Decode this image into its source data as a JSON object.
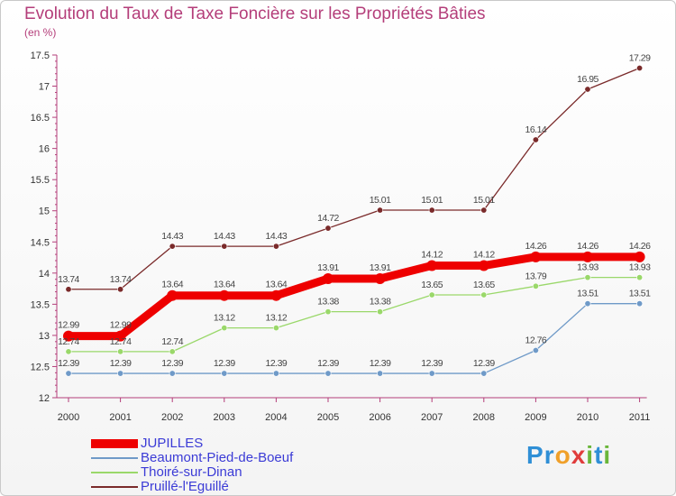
{
  "title": "Evolution du Taux de Taxe Foncière sur les Propriétés Bâties",
  "unit_label": "(en %)",
  "logo": {
    "text": "Proxiti",
    "letters": [
      "P",
      "r",
      "o",
      "x",
      "i",
      "t",
      "i"
    ],
    "colors": [
      "#2f8fd6",
      "#2f8fd6",
      "#f0a02a",
      "#e03c3c",
      "#6ab63a",
      "#2f8fd6",
      "#6ab63a"
    ]
  },
  "chart_data": {
    "type": "line",
    "title": "Evolution du Taux de Taxe Foncière sur les Propriétés Bâties",
    "ylabel": "(en %)",
    "xlabel": "",
    "x": [
      "2000",
      "2001",
      "2002",
      "2003",
      "2004",
      "2005",
      "2006",
      "2007",
      "2008",
      "2009",
      "2010",
      "2011"
    ],
    "ylim": [
      12,
      17.5
    ],
    "yticks": [
      "12",
      "12.5",
      "13",
      "13.5",
      "14",
      "14.5",
      "15",
      "15.5",
      "16",
      "16.5",
      "17",
      "17.5"
    ],
    "grid": false,
    "legend_position": "bottom-left",
    "series": [
      {
        "name": "JUPILLES",
        "color": "#ee0000",
        "bold": true,
        "values": [
          12.99,
          12.99,
          13.64,
          13.64,
          13.64,
          13.91,
          13.91,
          14.12,
          14.12,
          14.26,
          14.26,
          14.26
        ],
        "labels": [
          "12.99",
          "12.99",
          "13.64",
          "13.64",
          "13.64",
          "13.91",
          "13.91",
          "14.12",
          "14.12",
          "14.26",
          "14.26",
          "14.26"
        ]
      },
      {
        "name": "Beaumont-Pied-de-Boeuf",
        "color": "#6f9ac8",
        "bold": false,
        "values": [
          12.39,
          12.39,
          12.39,
          12.39,
          12.39,
          12.39,
          12.39,
          12.39,
          12.39,
          12.76,
          13.51,
          13.51
        ],
        "labels": [
          "12.39",
          "12.39",
          "12.39",
          "12.39",
          "12.39",
          "12.39",
          "12.39",
          "12.39",
          "12.39",
          "12.76",
          "13.51",
          "13.51"
        ]
      },
      {
        "name": "Thoiré-sur-Dinan",
        "color": "#9ad86a",
        "bold": false,
        "values": [
          12.74,
          12.74,
          12.74,
          13.12,
          13.12,
          13.38,
          13.38,
          13.65,
          13.65,
          13.79,
          13.93,
          13.93
        ],
        "labels": [
          "12.74",
          "12.74",
          "12.74",
          "13.12",
          "13.12",
          "13.38",
          "13.38",
          "13.65",
          "13.65",
          "13.79",
          "13.93",
          "13.93"
        ]
      },
      {
        "name": "Pruillé-l'Eguillé",
        "color": "#7a2a2a",
        "bold": false,
        "values": [
          13.74,
          13.74,
          14.43,
          14.43,
          14.43,
          14.72,
          15.01,
          15.01,
          15.01,
          16.14,
          16.95,
          17.29
        ],
        "labels": [
          "13.74",
          "13.74",
          "14.43",
          "14.43",
          "14.43",
          "14.72",
          "15.01",
          "15.01",
          "15.01",
          "16.14",
          "16.95",
          "17.29"
        ]
      }
    ]
  }
}
